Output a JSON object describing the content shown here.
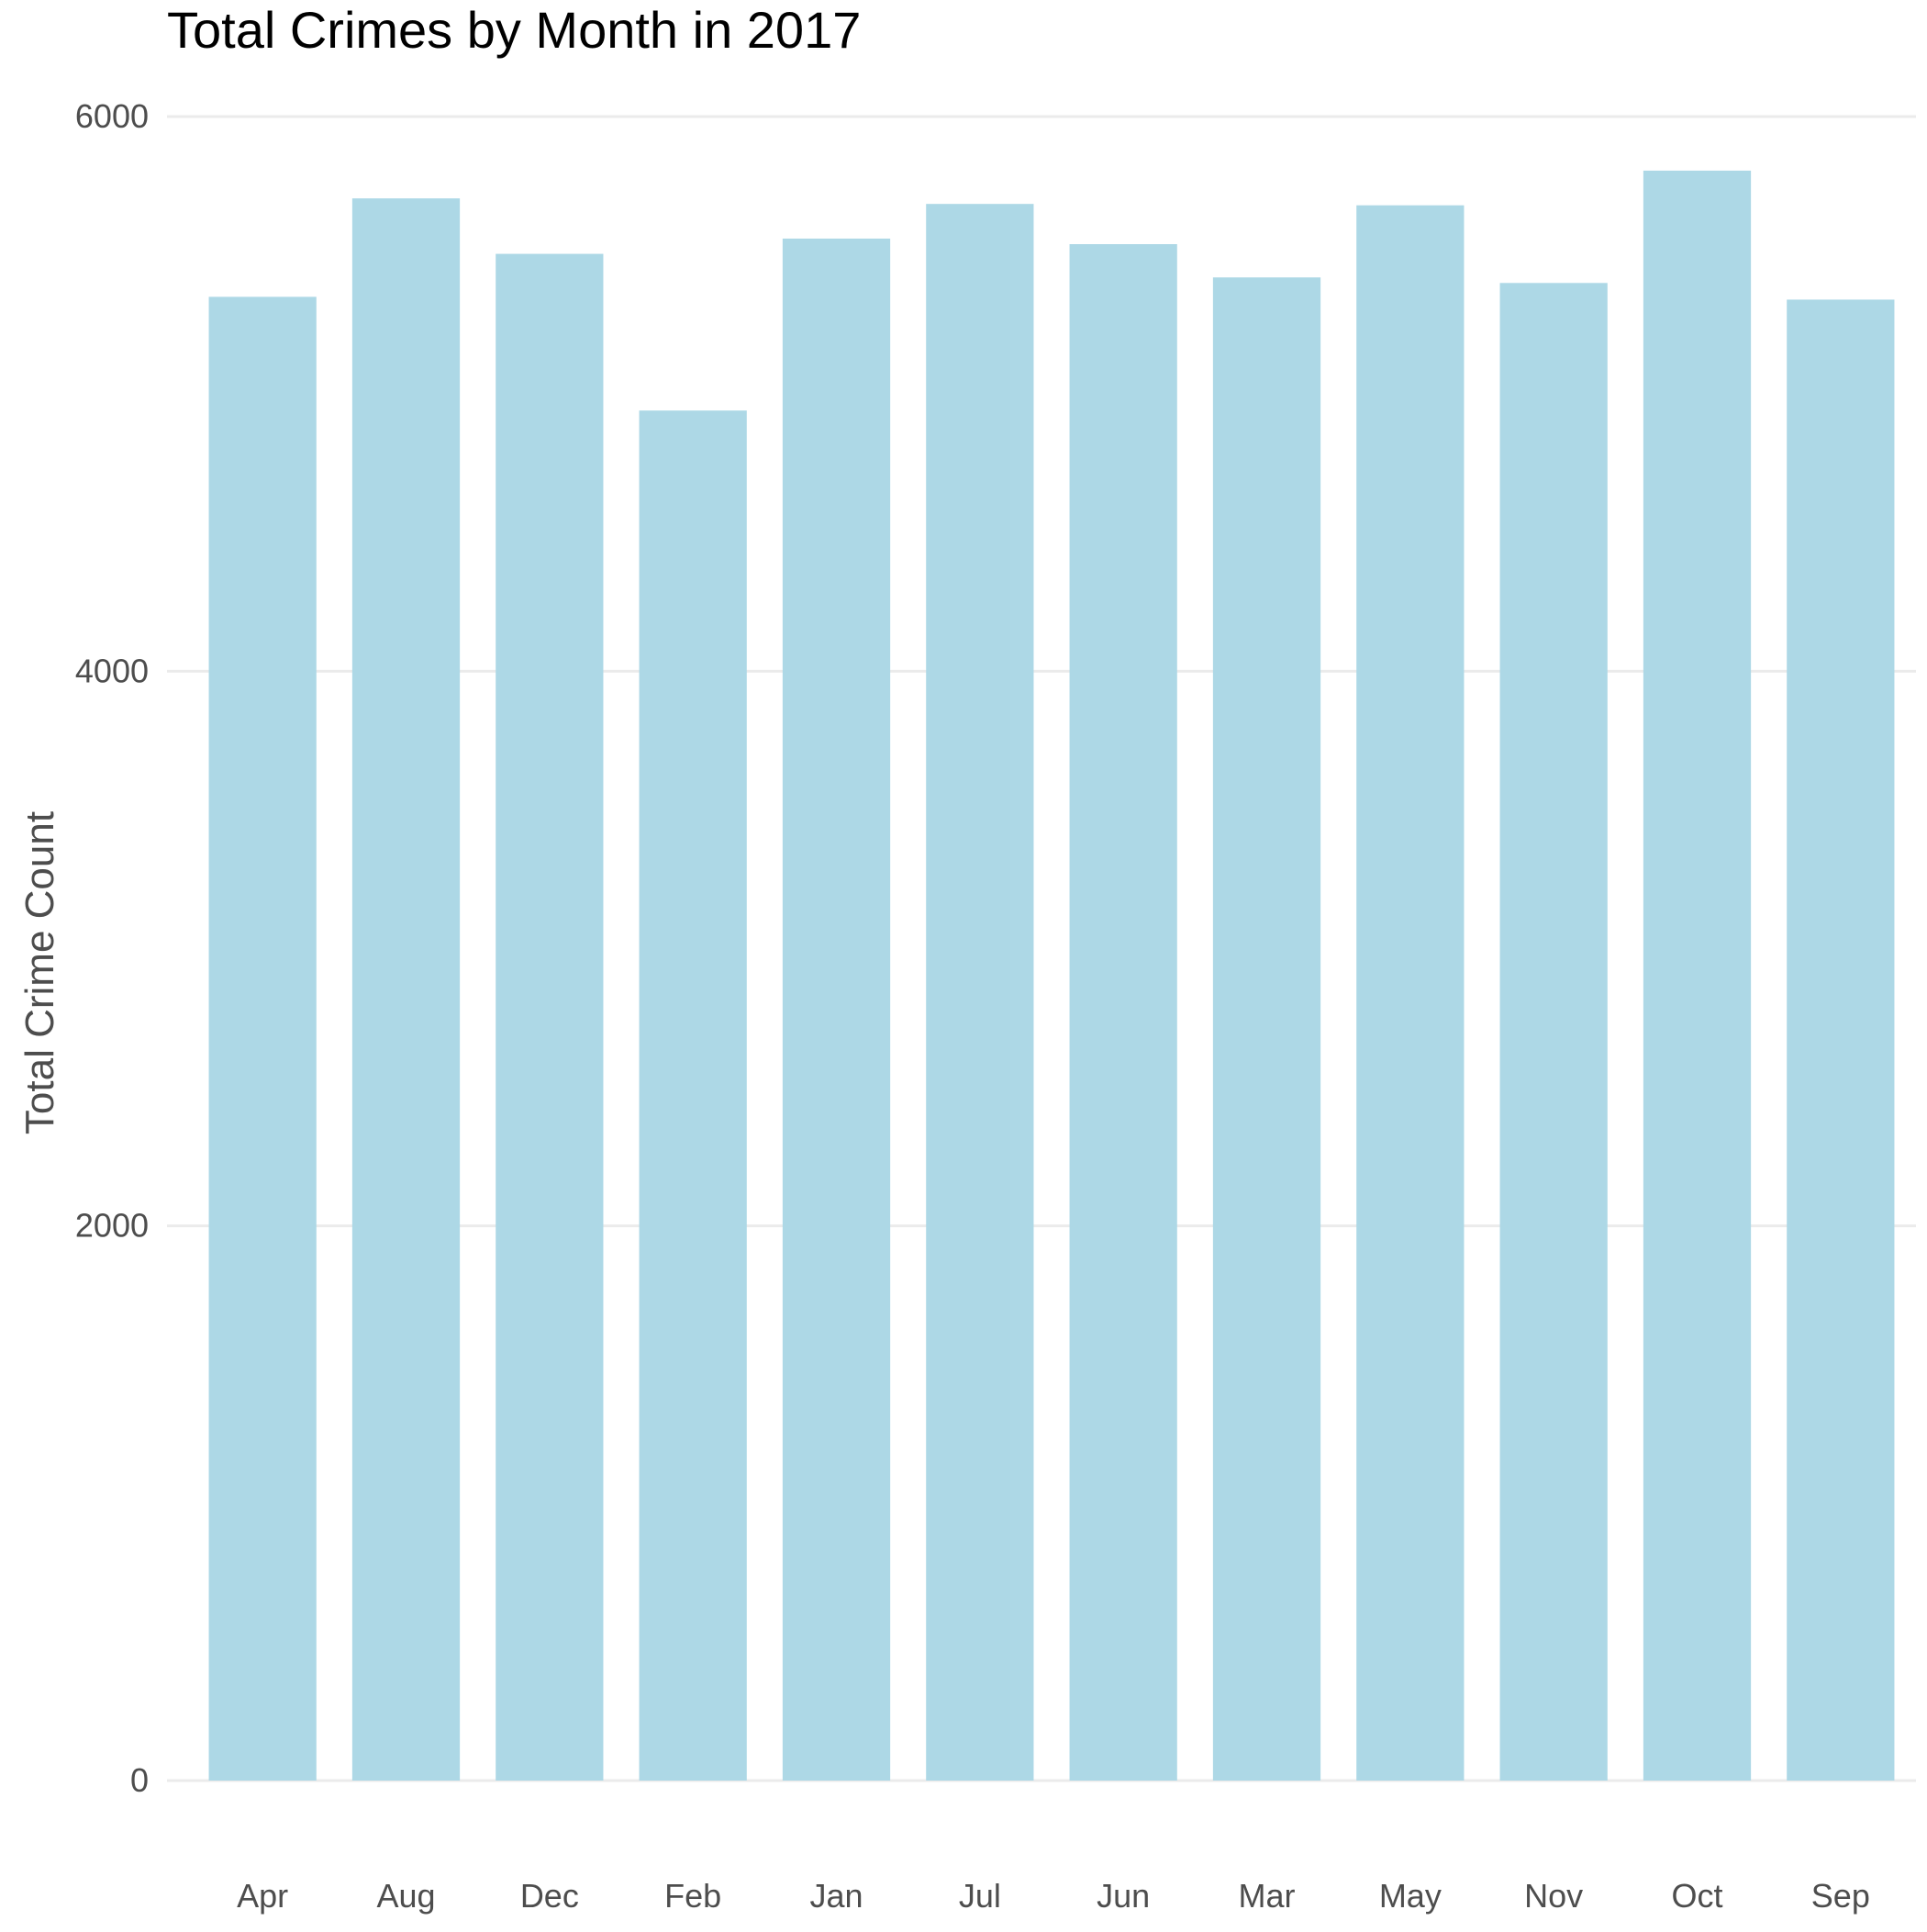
{
  "chart_data": {
    "type": "bar",
    "title": "Total Crimes by Month in 2017",
    "xlabel": "",
    "ylabel": "Total Crime Count",
    "categories": [
      "Apr",
      "Aug",
      "Dec",
      "Feb",
      "Jan",
      "Jul",
      "Jun",
      "Mar",
      "May",
      "Nov",
      "Oct",
      "Sep"
    ],
    "values": [
      5350,
      5705,
      5505,
      4940,
      5560,
      5685,
      5540,
      5420,
      5680,
      5400,
      5805,
      5340
    ],
    "yticks": [
      0,
      2000,
      4000,
      6000
    ],
    "ylim": [
      0,
      6000
    ],
    "grid": true,
    "legend": "none",
    "bar_color": "#add8e6"
  }
}
